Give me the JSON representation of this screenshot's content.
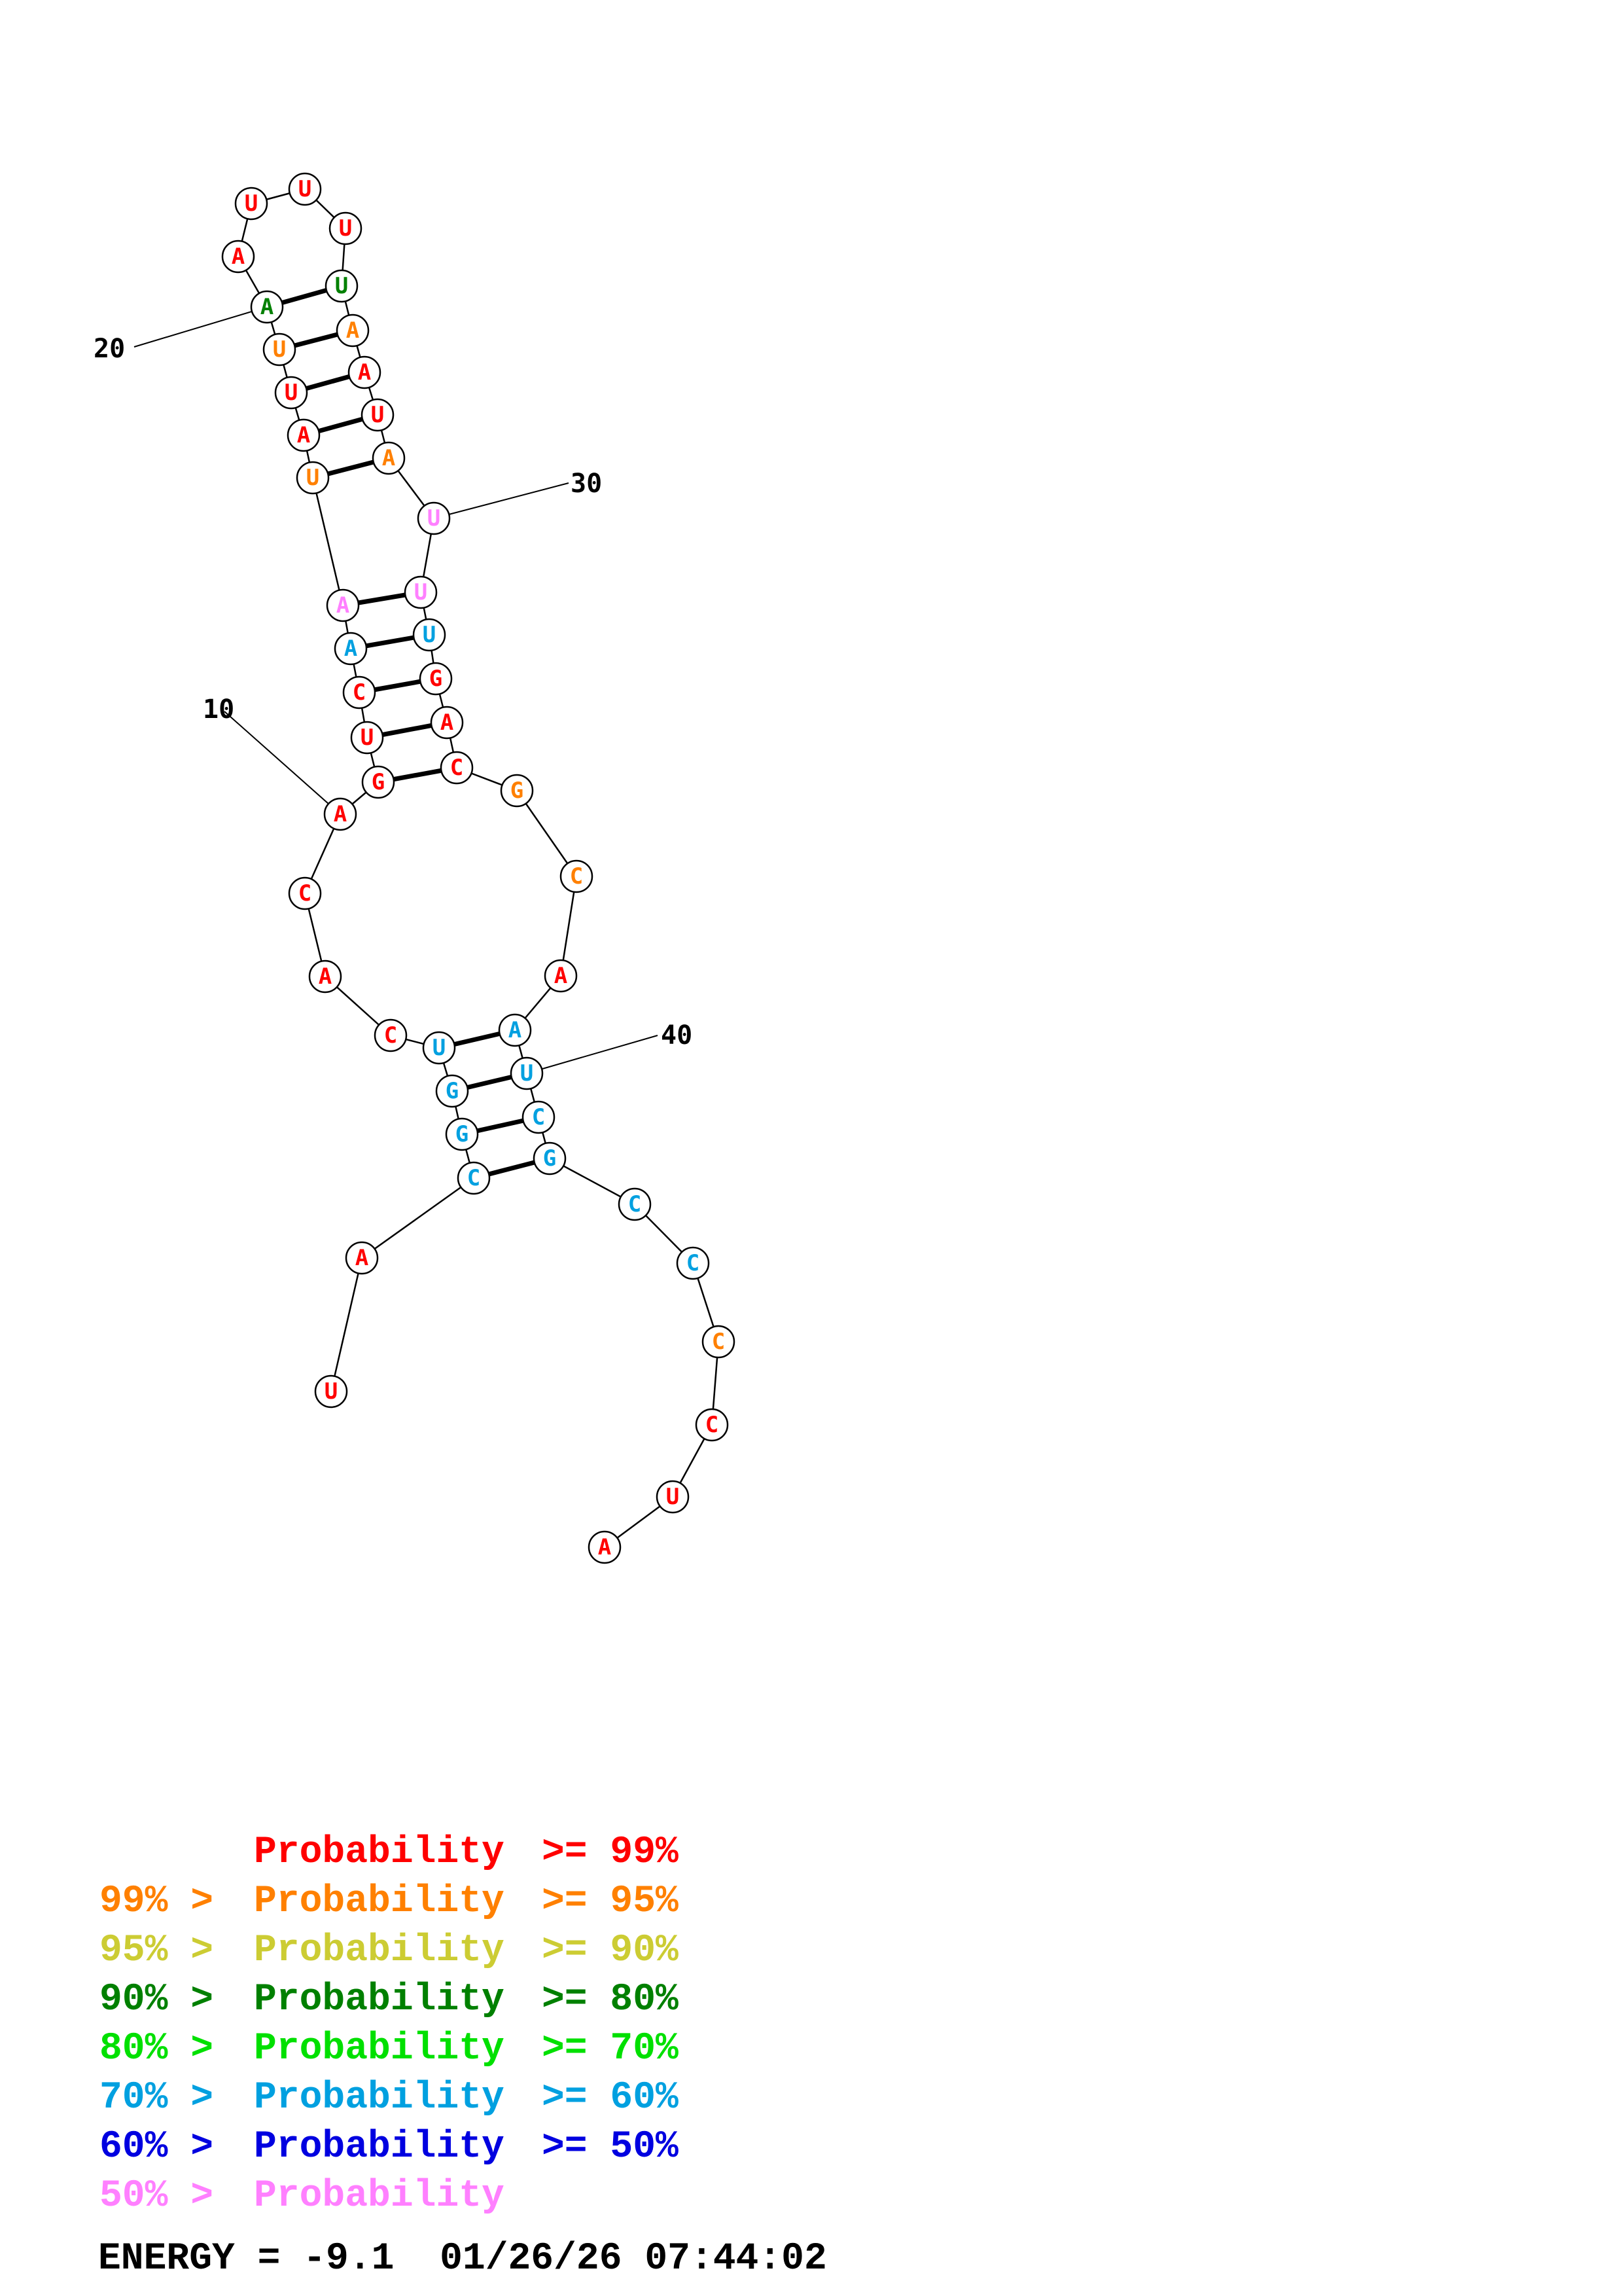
{
  "colors": {
    "p99": "#ff0000",
    "p95": "#ff8000",
    "p90": "#cccc33",
    "p80": "#008000",
    "p70": "#00e000",
    "p60": "#00a0e0",
    "p50": "#0000e0",
    "plow": "#ff80ff"
  },
  "structure": {
    "nucleotides": [
      {
        "n": 1,
        "base": "U",
        "p": "p99"
      },
      {
        "n": 2,
        "base": "A",
        "p": "p99"
      },
      {
        "n": 3,
        "base": "C",
        "p": "p60"
      },
      {
        "n": 4,
        "base": "G",
        "p": "p60"
      },
      {
        "n": 5,
        "base": "G",
        "p": "p60"
      },
      {
        "n": 6,
        "base": "U",
        "p": "p60"
      },
      {
        "n": 7,
        "base": "C",
        "p": "p99"
      },
      {
        "n": 8,
        "base": "A",
        "p": "p99"
      },
      {
        "n": 9,
        "base": "C",
        "p": "p99"
      },
      {
        "n": 10,
        "base": "A",
        "p": "p99"
      },
      {
        "n": 11,
        "base": "G",
        "p": "p99"
      },
      {
        "n": 12,
        "base": "U",
        "p": "p99"
      },
      {
        "n": 13,
        "base": "C",
        "p": "p99"
      },
      {
        "n": 14,
        "base": "A",
        "p": "p60"
      },
      {
        "n": 15,
        "base": "A",
        "p": "plow"
      },
      {
        "n": 16,
        "base": "U",
        "p": "p95"
      },
      {
        "n": 17,
        "base": "A",
        "p": "p99"
      },
      {
        "n": 18,
        "base": "U",
        "p": "p99"
      },
      {
        "n": 19,
        "base": "U",
        "p": "p95"
      },
      {
        "n": 20,
        "base": "A",
        "p": "p80"
      },
      {
        "n": 21,
        "base": "A",
        "p": "p99"
      },
      {
        "n": 22,
        "base": "U",
        "p": "p99"
      },
      {
        "n": 23,
        "base": "U",
        "p": "p99"
      },
      {
        "n": 24,
        "base": "U",
        "p": "p99"
      },
      {
        "n": 25,
        "base": "U",
        "p": "p80"
      },
      {
        "n": 26,
        "base": "A",
        "p": "p95"
      },
      {
        "n": 27,
        "base": "A",
        "p": "p99"
      },
      {
        "n": 28,
        "base": "U",
        "p": "p99"
      },
      {
        "n": 29,
        "base": "A",
        "p": "p95"
      },
      {
        "n": 30,
        "base": "U",
        "p": "plow"
      },
      {
        "n": 31,
        "base": "U",
        "p": "plow"
      },
      {
        "n": 32,
        "base": "U",
        "p": "p60"
      },
      {
        "n": 33,
        "base": "G",
        "p": "p99"
      },
      {
        "n": 34,
        "base": "A",
        "p": "p99"
      },
      {
        "n": 35,
        "base": "C",
        "p": "p99"
      },
      {
        "n": 36,
        "base": "G",
        "p": "p95"
      },
      {
        "n": 37,
        "base": "C",
        "p": "p95"
      },
      {
        "n": 38,
        "base": "A",
        "p": "p99"
      },
      {
        "n": 39,
        "base": "A",
        "p": "p60"
      },
      {
        "n": 40,
        "base": "U",
        "p": "p60"
      },
      {
        "n": 41,
        "base": "C",
        "p": "p60"
      },
      {
        "n": 42,
        "base": "G",
        "p": "p60"
      },
      {
        "n": 43,
        "base": "C",
        "p": "p60"
      },
      {
        "n": 44,
        "base": "C",
        "p": "p60"
      },
      {
        "n": 45,
        "base": "C",
        "p": "p95"
      },
      {
        "n": 46,
        "base": "C",
        "p": "p99"
      },
      {
        "n": 47,
        "base": "U",
        "p": "p99"
      },
      {
        "n": 48,
        "base": "A",
        "p": "p99"
      }
    ],
    "pairs": [
      [
        3,
        42
      ],
      [
        4,
        41
      ],
      [
        5,
        40
      ],
      [
        6,
        39
      ],
      [
        11,
        35
      ],
      [
        12,
        34
      ],
      [
        13,
        33
      ],
      [
        14,
        32
      ],
      [
        15,
        31
      ],
      [
        16,
        29
      ],
      [
        17,
        28
      ],
      [
        18,
        27
      ],
      [
        19,
        26
      ],
      [
        20,
        25
      ]
    ],
    "position_labels": [
      {
        "n": 10,
        "text": "10"
      },
      {
        "n": 20,
        "text": "20"
      },
      {
        "n": 30,
        "text": "30"
      },
      {
        "n": 40,
        "text": "40"
      }
    ]
  },
  "legend": [
    {
      "prefix": "",
      "label": "Probability",
      "suffix": ">= 99%",
      "color": "p99"
    },
    {
      "prefix": "99% >",
      "label": "Probability",
      "suffix": ">= 95%",
      "color": "p95"
    },
    {
      "prefix": "95% >",
      "label": "Probability",
      "suffix": ">= 90%",
      "color": "p90"
    },
    {
      "prefix": "90% >",
      "label": "Probability",
      "suffix": ">= 80%",
      "color": "p80"
    },
    {
      "prefix": "80% >",
      "label": "Probability",
      "suffix": ">= 70%",
      "color": "p70"
    },
    {
      "prefix": "70% >",
      "label": "Probability",
      "suffix": ">= 60%",
      "color": "p60"
    },
    {
      "prefix": "60% >",
      "label": "Probability",
      "suffix": ">= 50%",
      "color": "p50"
    },
    {
      "prefix": "50% >",
      "label": "Probability",
      "suffix": "",
      "color": "plow"
    }
  ],
  "energy": {
    "text": "ENERGY = -9.1  01/26/26 07:44:02"
  }
}
